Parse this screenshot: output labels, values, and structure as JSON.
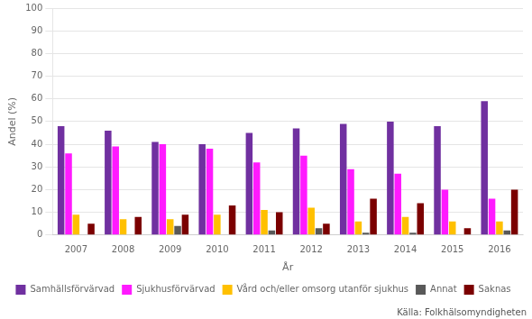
{
  "chart_data": {
    "type": "bar",
    "categories": [
      "2007",
      "2008",
      "2009",
      "2010",
      "2011",
      "2012",
      "2013",
      "2014",
      "2015",
      "2016"
    ],
    "series": [
      {
        "name": "Samhällsförvärvad",
        "color": "#7030a0",
        "values": [
          48,
          46,
          41,
          40,
          45,
          47,
          49,
          50,
          48,
          59
        ]
      },
      {
        "name": "Sjukhusförvärvad",
        "color": "#ff1aff",
        "values": [
          36,
          39,
          40,
          38,
          32,
          35,
          29,
          27,
          20,
          16
        ]
      },
      {
        "name": "Vård och/eller omsorg utanför sjukhus",
        "color": "#ffc000",
        "values": [
          9,
          7,
          7,
          9,
          11,
          12,
          6,
          8,
          6,
          6
        ]
      },
      {
        "name": "Annat",
        "color": "#595959",
        "values": [
          0,
          0,
          4,
          0,
          2,
          3,
          1,
          1,
          0,
          2
        ]
      },
      {
        "name": "Saknas",
        "color": "#7b0000",
        "values": [
          5,
          8,
          9,
          13,
          10,
          5,
          16,
          14,
          3,
          20
        ]
      }
    ],
    "xlabel": "År",
    "ylabel": "Andel (%)",
    "ylim": [
      0,
      100
    ],
    "yticks": [
      0,
      10,
      20,
      30,
      40,
      50,
      60,
      70,
      80,
      90,
      100
    ],
    "grid": true,
    "legend": "bottom",
    "annotations": [
      "Källa: Folkhälsomyndigheten"
    ]
  }
}
